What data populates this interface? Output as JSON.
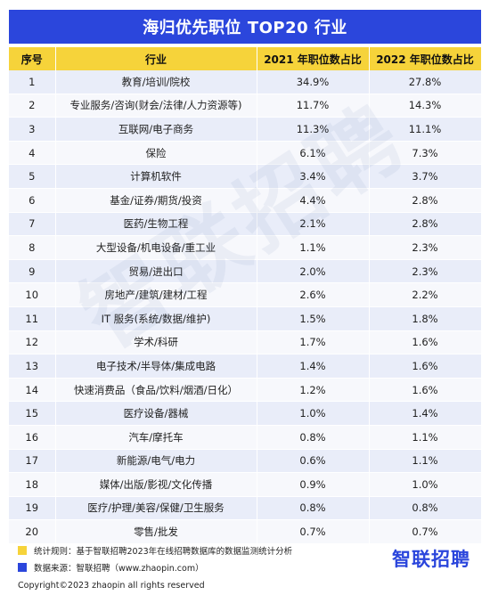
{
  "title": "海归优先职位 TOP20 行业",
  "table": {
    "headers": [
      "序号",
      "行业",
      "2021 年职位数占比",
      "2022 年职位数占比"
    ],
    "rows": [
      [
        "1",
        "教育/培训/院校",
        "34.9%",
        "27.8%"
      ],
      [
        "2",
        "专业服务/咨询(财会/法律/人力资源等)",
        "11.7%",
        "14.3%"
      ],
      [
        "3",
        "互联网/电子商务",
        "11.3%",
        "11.1%"
      ],
      [
        "4",
        "保险",
        "6.1%",
        "7.3%"
      ],
      [
        "5",
        "计算机软件",
        "3.4%",
        "3.7%"
      ],
      [
        "6",
        "基金/证券/期货/投资",
        "4.4%",
        "2.8%"
      ],
      [
        "7",
        "医药/生物工程",
        "2.1%",
        "2.8%"
      ],
      [
        "8",
        "大型设备/机电设备/重工业",
        "1.1%",
        "2.3%"
      ],
      [
        "9",
        "贸易/进出口",
        "2.0%",
        "2.3%"
      ],
      [
        "10",
        "房地产/建筑/建材/工程",
        "2.6%",
        "2.2%"
      ],
      [
        "11",
        "IT 服务(系统/数据/维护)",
        "1.5%",
        "1.8%"
      ],
      [
        "12",
        "学术/科研",
        "1.7%",
        "1.6%"
      ],
      [
        "13",
        "电子技术/半导体/集成电路",
        "1.4%",
        "1.6%"
      ],
      [
        "14",
        "快速消费品（食品/饮料/烟酒/日化）",
        "1.2%",
        "1.6%"
      ],
      [
        "15",
        "医疗设备/器械",
        "1.0%",
        "1.4%"
      ],
      [
        "16",
        "汽车/摩托车",
        "0.8%",
        "1.1%"
      ],
      [
        "17",
        "新能源/电气/电力",
        "0.6%",
        "1.1%"
      ],
      [
        "18",
        "媒体/出版/影视/文化传播",
        "0.9%",
        "1.0%"
      ],
      [
        "19",
        "医疗/护理/美容/保健/卫生服务",
        "0.8%",
        "0.8%"
      ],
      [
        "20",
        "零售/批发",
        "0.7%",
        "0.7%"
      ]
    ]
  },
  "watermark": "智联招聘",
  "notes": {
    "rule": "统计规则：基于智联招聘2023年在线招聘数据库的数据监测统计分析",
    "source": "数据来源：智联招聘（www.zhaopin.com）"
  },
  "brand": "智联招聘",
  "copyright": "Copyright©2023 zhaopin all rights reserved",
  "colors": {
    "title_bg": "#2b46dc",
    "header_bg": "#f6d33a",
    "row_odd": "#e9edf9",
    "row_even": "#f7f8fc",
    "note_yellow": "#f6d33a",
    "note_blue": "#2b46dc",
    "brand": "#2b46dc"
  }
}
